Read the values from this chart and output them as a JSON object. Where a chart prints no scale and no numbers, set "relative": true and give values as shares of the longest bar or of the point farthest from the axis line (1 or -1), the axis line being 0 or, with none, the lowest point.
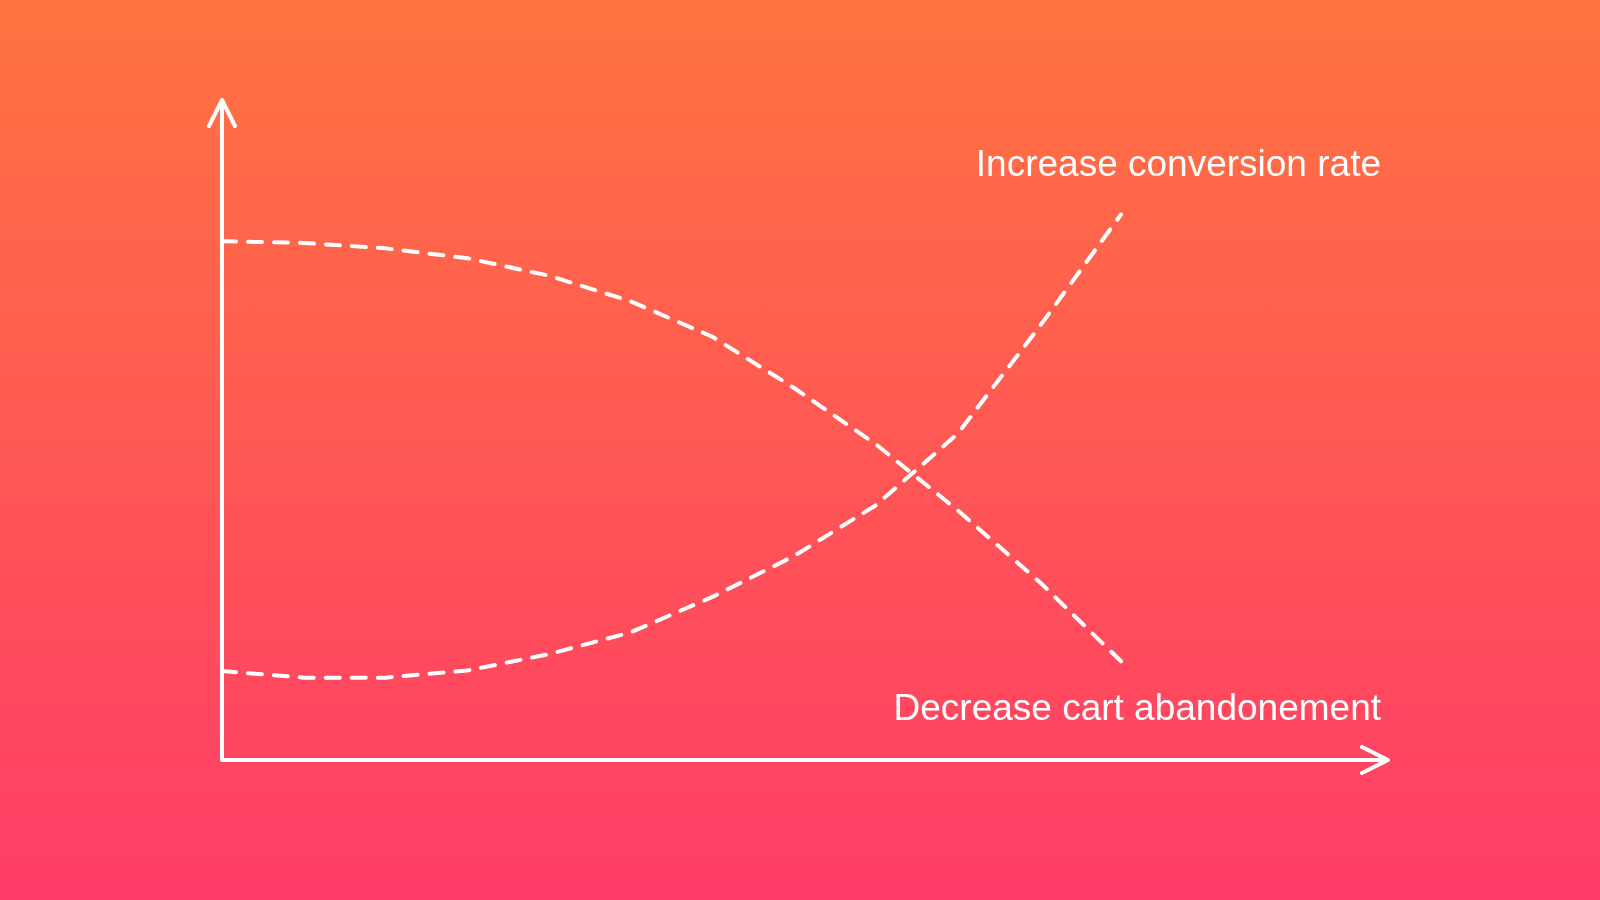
{
  "chart_data": {
    "type": "line",
    "relative": true,
    "categories": [
      null,
      null,
      null,
      null,
      null,
      null,
      null,
      null,
      null,
      null,
      null,
      null
    ],
    "series": [
      {
        "name": "Increase conversion rate",
        "color": "#ffffff",
        "values": [
          0.163,
          0.151,
          0.151,
          0.164,
          0.194,
          0.234,
          0.299,
          0.374,
          0.467,
          0.598,
          0.794,
          1.0
        ]
      },
      {
        "name": "Decrease cart abandonement",
        "color": "#ffffff",
        "values": [
          0.951,
          0.948,
          0.938,
          0.92,
          0.888,
          0.841,
          0.776,
          0.682,
          0.579,
          0.458,
          0.327,
          0.181
        ]
      }
    ],
    "line_style": "dashed",
    "marker": "none",
    "legend": false
  }
}
